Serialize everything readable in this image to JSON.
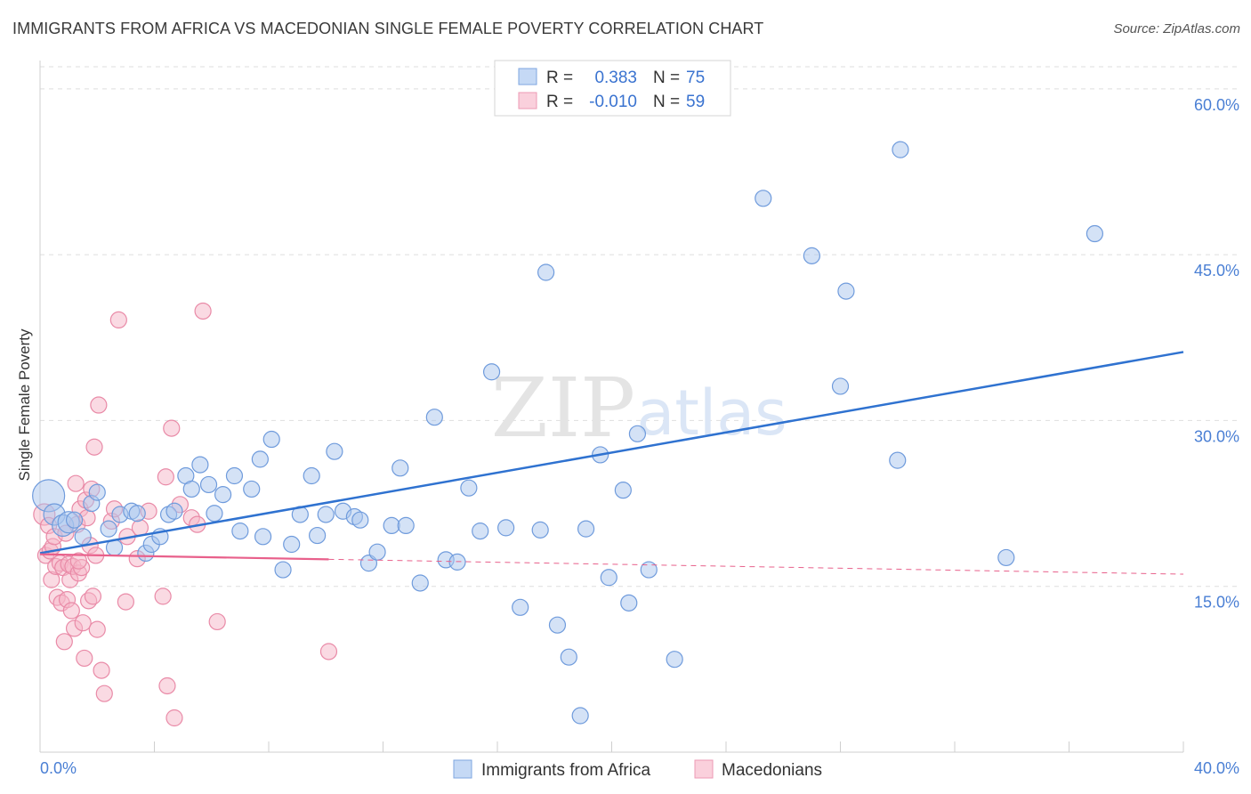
{
  "title": "IMMIGRANTS FROM AFRICA VS MACEDONIAN SINGLE FEMALE POVERTY CORRELATION CHART",
  "source": "Source: ZipAtlas.com",
  "watermark": {
    "zip": "ZIP",
    "atlas": "atlas"
  },
  "colors": {
    "blue_fill": "#a9c6ee",
    "blue_stroke": "#6f9bdc",
    "blue_line": "#2f72d0",
    "pink_fill": "#f6b6c8",
    "pink_stroke": "#e98aa7",
    "pink_line": "#e8608b",
    "grid": "#dedede",
    "axis_text": "#4a7fd4"
  },
  "legend": {
    "rows": [
      {
        "r_label": "R =",
        "r_value": "0.383",
        "n_label": "N =",
        "n_value": "75",
        "series": "blue"
      },
      {
        "r_label": "R =",
        "r_value": "-0.010",
        "n_label": "N =",
        "n_value": "59",
        "series": "pink"
      }
    ]
  },
  "bottom_legend": [
    "Immigrants from Africa",
    "Macedonians"
  ],
  "chart_data": {
    "type": "scatter",
    "title": "IMMIGRANTS FROM AFRICA VS MACEDONIAN SINGLE FEMALE POVERTY CORRELATION CHART",
    "xlabel": "",
    "ylabel": "Single Female Poverty",
    "xlim": [
      0,
      40
    ],
    "ylim": [
      0,
      62
    ],
    "x_tick_labels": [
      "0.0%",
      "40.0%"
    ],
    "y_ticks": [
      15,
      30,
      45,
      60
    ],
    "y_tick_labels": [
      "15.0%",
      "30.0%",
      "45.0%",
      "60.0%"
    ],
    "grid": true,
    "series": [
      {
        "name": "Immigrants from Africa",
        "color": "blue",
        "R": 0.383,
        "N": 75,
        "trend": {
          "x0": 0,
          "y0": 18.0,
          "x1": 40,
          "y1": 36.2,
          "x_end_solid": 40
        },
        "points": [
          [
            0.3,
            23.2,
            3
          ],
          [
            0.5,
            21.5,
            2
          ],
          [
            0.8,
            20.5,
            2
          ],
          [
            1.0,
            20.8,
            2
          ],
          [
            1.2,
            21.0,
            1
          ],
          [
            1.5,
            19.5,
            1
          ],
          [
            1.8,
            22.5,
            1
          ],
          [
            2.0,
            23.5,
            1
          ],
          [
            2.4,
            20.2,
            1
          ],
          [
            2.6,
            18.5,
            1
          ],
          [
            2.8,
            21.5,
            1
          ],
          [
            3.2,
            21.8,
            1
          ],
          [
            3.4,
            21.6,
            1
          ],
          [
            3.7,
            18.0,
            1
          ],
          [
            3.9,
            18.8,
            1
          ],
          [
            4.2,
            19.5,
            1
          ],
          [
            4.5,
            21.5,
            1
          ],
          [
            4.7,
            21.8,
            1
          ],
          [
            5.1,
            25.0,
            1
          ],
          [
            5.3,
            23.8,
            1
          ],
          [
            5.6,
            26.0,
            1
          ],
          [
            5.9,
            24.2,
            1
          ],
          [
            6.1,
            21.6,
            1
          ],
          [
            6.4,
            23.3,
            1
          ],
          [
            6.8,
            25.0,
            1
          ],
          [
            7.0,
            20.0,
            1
          ],
          [
            7.4,
            23.8,
            1
          ],
          [
            7.7,
            26.5,
            1
          ],
          [
            7.8,
            19.5,
            1
          ],
          [
            8.1,
            28.3,
            1
          ],
          [
            8.5,
            16.5,
            1
          ],
          [
            8.8,
            18.8,
            1
          ],
          [
            9.1,
            21.5,
            1
          ],
          [
            9.5,
            25.0,
            1
          ],
          [
            9.7,
            19.6,
            1
          ],
          [
            10.0,
            21.5,
            1
          ],
          [
            10.3,
            27.2,
            1
          ],
          [
            10.6,
            21.8,
            1
          ],
          [
            11.0,
            21.3,
            1
          ],
          [
            11.2,
            21.0,
            1
          ],
          [
            11.5,
            17.1,
            1
          ],
          [
            11.8,
            18.1,
            1
          ],
          [
            12.3,
            20.5,
            1
          ],
          [
            12.6,
            25.7,
            1
          ],
          [
            12.8,
            20.5,
            1
          ],
          [
            13.3,
            15.3,
            1
          ],
          [
            13.8,
            30.3,
            1
          ],
          [
            14.2,
            17.4,
            1
          ],
          [
            14.6,
            17.2,
            1
          ],
          [
            15.0,
            23.9,
            1
          ],
          [
            15.4,
            20.0,
            1
          ],
          [
            15.8,
            34.4,
            1
          ],
          [
            16.3,
            20.3,
            1
          ],
          [
            16.8,
            13.1,
            1
          ],
          [
            17.5,
            20.1,
            1
          ],
          [
            17.7,
            43.4,
            1
          ],
          [
            18.1,
            11.5,
            1
          ],
          [
            18.5,
            8.6,
            1
          ],
          [
            18.9,
            3.3,
            1
          ],
          [
            19.1,
            20.2,
            1
          ],
          [
            19.6,
            26.9,
            1
          ],
          [
            19.9,
            15.8,
            1
          ],
          [
            20.4,
            23.7,
            1
          ],
          [
            20.6,
            13.5,
            1
          ],
          [
            20.9,
            28.8,
            1
          ],
          [
            21.3,
            16.5,
            1
          ],
          [
            22.2,
            8.4,
            1
          ],
          [
            25.3,
            50.1,
            1
          ],
          [
            27.0,
            44.9,
            1
          ],
          [
            28.0,
            33.1,
            1
          ],
          [
            28.2,
            41.7,
            1
          ],
          [
            30.0,
            26.4,
            1
          ],
          [
            30.1,
            54.5,
            1
          ],
          [
            33.8,
            17.6,
            1
          ],
          [
            36.9,
            46.9,
            1
          ]
        ]
      },
      {
        "name": "Macedonians",
        "color": "pink",
        "R": -0.01,
        "N": 59,
        "trend": {
          "x0": 0,
          "y0": 17.9,
          "x1": 40,
          "y1": 16.1,
          "x_end_solid": 10.1
        },
        "points": [
          [
            0.15,
            21.5,
            2
          ],
          [
            0.2,
            17.8,
            1
          ],
          [
            0.3,
            20.5,
            1
          ],
          [
            0.35,
            18.2,
            1
          ],
          [
            0.4,
            15.6,
            1
          ],
          [
            0.45,
            18.6,
            1
          ],
          [
            0.5,
            19.5,
            1
          ],
          [
            0.55,
            16.8,
            1
          ],
          [
            0.6,
            14.0,
            1
          ],
          [
            0.7,
            17.1,
            1
          ],
          [
            0.75,
            13.5,
            1
          ],
          [
            0.8,
            16.7,
            1
          ],
          [
            0.85,
            10.0,
            1
          ],
          [
            0.9,
            19.8,
            1
          ],
          [
            0.95,
            13.8,
            1
          ],
          [
            1.0,
            17.0,
            1
          ],
          [
            1.05,
            15.6,
            1
          ],
          [
            1.1,
            12.8,
            1
          ],
          [
            1.15,
            16.8,
            1
          ],
          [
            1.2,
            11.2,
            1
          ],
          [
            1.25,
            24.3,
            1
          ],
          [
            1.3,
            20.6,
            1
          ],
          [
            1.35,
            16.2,
            1
          ],
          [
            1.4,
            22.0,
            1
          ],
          [
            1.45,
            16.7,
            1
          ],
          [
            1.5,
            11.7,
            1
          ],
          [
            1.55,
            8.5,
            1
          ],
          [
            1.6,
            22.8,
            1
          ],
          [
            1.65,
            21.2,
            1
          ],
          [
            1.7,
            13.7,
            1
          ],
          [
            1.75,
            18.7,
            1
          ],
          [
            1.8,
            23.8,
            1
          ],
          [
            1.85,
            14.1,
            1
          ],
          [
            1.9,
            27.6,
            1
          ],
          [
            1.95,
            17.8,
            1
          ],
          [
            2.0,
            11.1,
            1
          ],
          [
            2.05,
            31.4,
            1
          ],
          [
            2.15,
            7.4,
            1
          ],
          [
            2.25,
            5.3,
            1
          ],
          [
            2.5,
            20.9,
            1
          ],
          [
            2.6,
            22.0,
            1
          ],
          [
            2.75,
            39.1,
            1
          ],
          [
            3.0,
            13.6,
            1
          ],
          [
            3.05,
            19.5,
            1
          ],
          [
            3.4,
            17.5,
            1
          ],
          [
            3.5,
            20.3,
            1
          ],
          [
            4.3,
            14.1,
            1
          ],
          [
            4.4,
            24.9,
            1
          ],
          [
            4.45,
            6.0,
            1
          ],
          [
            4.6,
            29.3,
            1
          ],
          [
            4.7,
            3.1,
            1
          ],
          [
            4.9,
            22.4,
            1
          ],
          [
            5.3,
            21.2,
            1
          ],
          [
            5.5,
            20.6,
            1
          ],
          [
            5.7,
            39.9,
            1
          ],
          [
            6.2,
            11.8,
            1
          ],
          [
            10.1,
            9.1,
            1
          ],
          [
            3.8,
            21.8,
            1
          ],
          [
            1.35,
            17.3,
            1
          ]
        ]
      }
    ]
  }
}
